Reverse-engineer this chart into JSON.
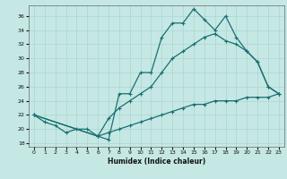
{
  "xlabel": "Humidex (Indice chaleur)",
  "bg_color": "#c5e8e5",
  "line_color": "#1a7070",
  "grid_color": "#aad4d0",
  "xlim": [
    -0.5,
    23.5
  ],
  "ylim": [
    17.5,
    37.5
  ],
  "xticks": [
    0,
    1,
    2,
    3,
    4,
    5,
    6,
    7,
    8,
    9,
    10,
    11,
    12,
    13,
    14,
    15,
    16,
    17,
    18,
    19,
    20,
    21,
    22,
    23
  ],
  "yticks": [
    18,
    20,
    22,
    24,
    26,
    28,
    30,
    32,
    34,
    36
  ],
  "series1_jagged": {
    "x": [
      0,
      1,
      2,
      3,
      4,
      5,
      6,
      7,
      8,
      9,
      10,
      11,
      12,
      13,
      14,
      15,
      16,
      17,
      18,
      19,
      20,
      21,
      22,
      23
    ],
    "y": [
      22,
      21,
      20.5,
      19.5,
      20,
      20,
      19,
      18.5,
      25,
      25,
      28,
      28,
      33,
      35,
      35,
      37,
      35.5,
      34,
      36,
      33,
      31,
      29.5,
      26,
      25
    ]
  },
  "series2_smooth": {
    "x": [
      0,
      6,
      7,
      8,
      9,
      10,
      11,
      12,
      13,
      14,
      15,
      16,
      17,
      18,
      19,
      20,
      21,
      22,
      23
    ],
    "y": [
      22,
      19,
      21.5,
      23,
      24,
      25,
      26,
      28,
      30,
      31,
      32,
      33,
      33.5,
      32.5,
      32,
      31,
      29.5,
      26,
      25
    ]
  },
  "series3_straight": {
    "x": [
      0,
      6,
      7,
      8,
      9,
      10,
      11,
      12,
      13,
      14,
      15,
      16,
      17,
      18,
      19,
      20,
      21,
      22,
      23
    ],
    "y": [
      22,
      19,
      19.5,
      20,
      20.5,
      21,
      21.5,
      22,
      22.5,
      23,
      23.5,
      23.5,
      24,
      24,
      24,
      24.5,
      24.5,
      24.5,
      25
    ]
  }
}
